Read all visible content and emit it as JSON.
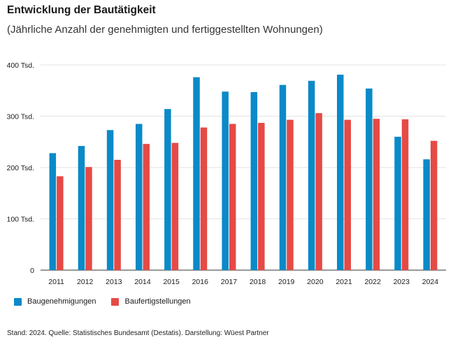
{
  "colors": {
    "baugenehmigungen": "#0a8ac8",
    "baufertigstellungen": "#e64a45",
    "grid": "#e3e3e3",
    "axis": "#333333"
  },
  "chart_data": {
    "type": "bar",
    "title": "Entwicklung der Bautätigkeit",
    "subtitle": "(Jährliche Anzahl der genehmigten und fertiggestellten Wohnungen)",
    "categories": [
      "2011",
      "2012",
      "2013",
      "2014",
      "2015",
      "2016",
      "2017",
      "2018",
      "2019",
      "2020",
      "2021",
      "2022",
      "2023",
      "2024"
    ],
    "series": [
      {
        "name": "Baugenehmigungen",
        "values": [
          228,
          242,
          273,
          285,
          314,
          376,
          348,
          347,
          361,
          369,
          381,
          354,
          260,
          216
        ]
      },
      {
        "name": "Baufertigstellungen",
        "values": [
          183,
          201,
          215,
          246,
          248,
          278,
          285,
          287,
          293,
          306,
          293,
          295,
          294,
          252
        ]
      }
    ],
    "ylim": [
      0,
      400
    ],
    "yticks": [
      {
        "value": 0,
        "label": "0"
      },
      {
        "value": 100,
        "label": "100 Tsd."
      },
      {
        "value": 200,
        "label": "200 Tsd."
      },
      {
        "value": 300,
        "label": "300 Tsd."
      },
      {
        "value": 400,
        "label": "400 Tsd."
      }
    ],
    "grid": true,
    "legend_position": "bottom-left"
  },
  "legend": [
    "Baugenehmigungen",
    "Baufertigstellungen"
  ],
  "footnote": "Stand: 2024. Quelle: Statistisches Bundesamt (Destatis). Darstellung: Wüest Partner"
}
